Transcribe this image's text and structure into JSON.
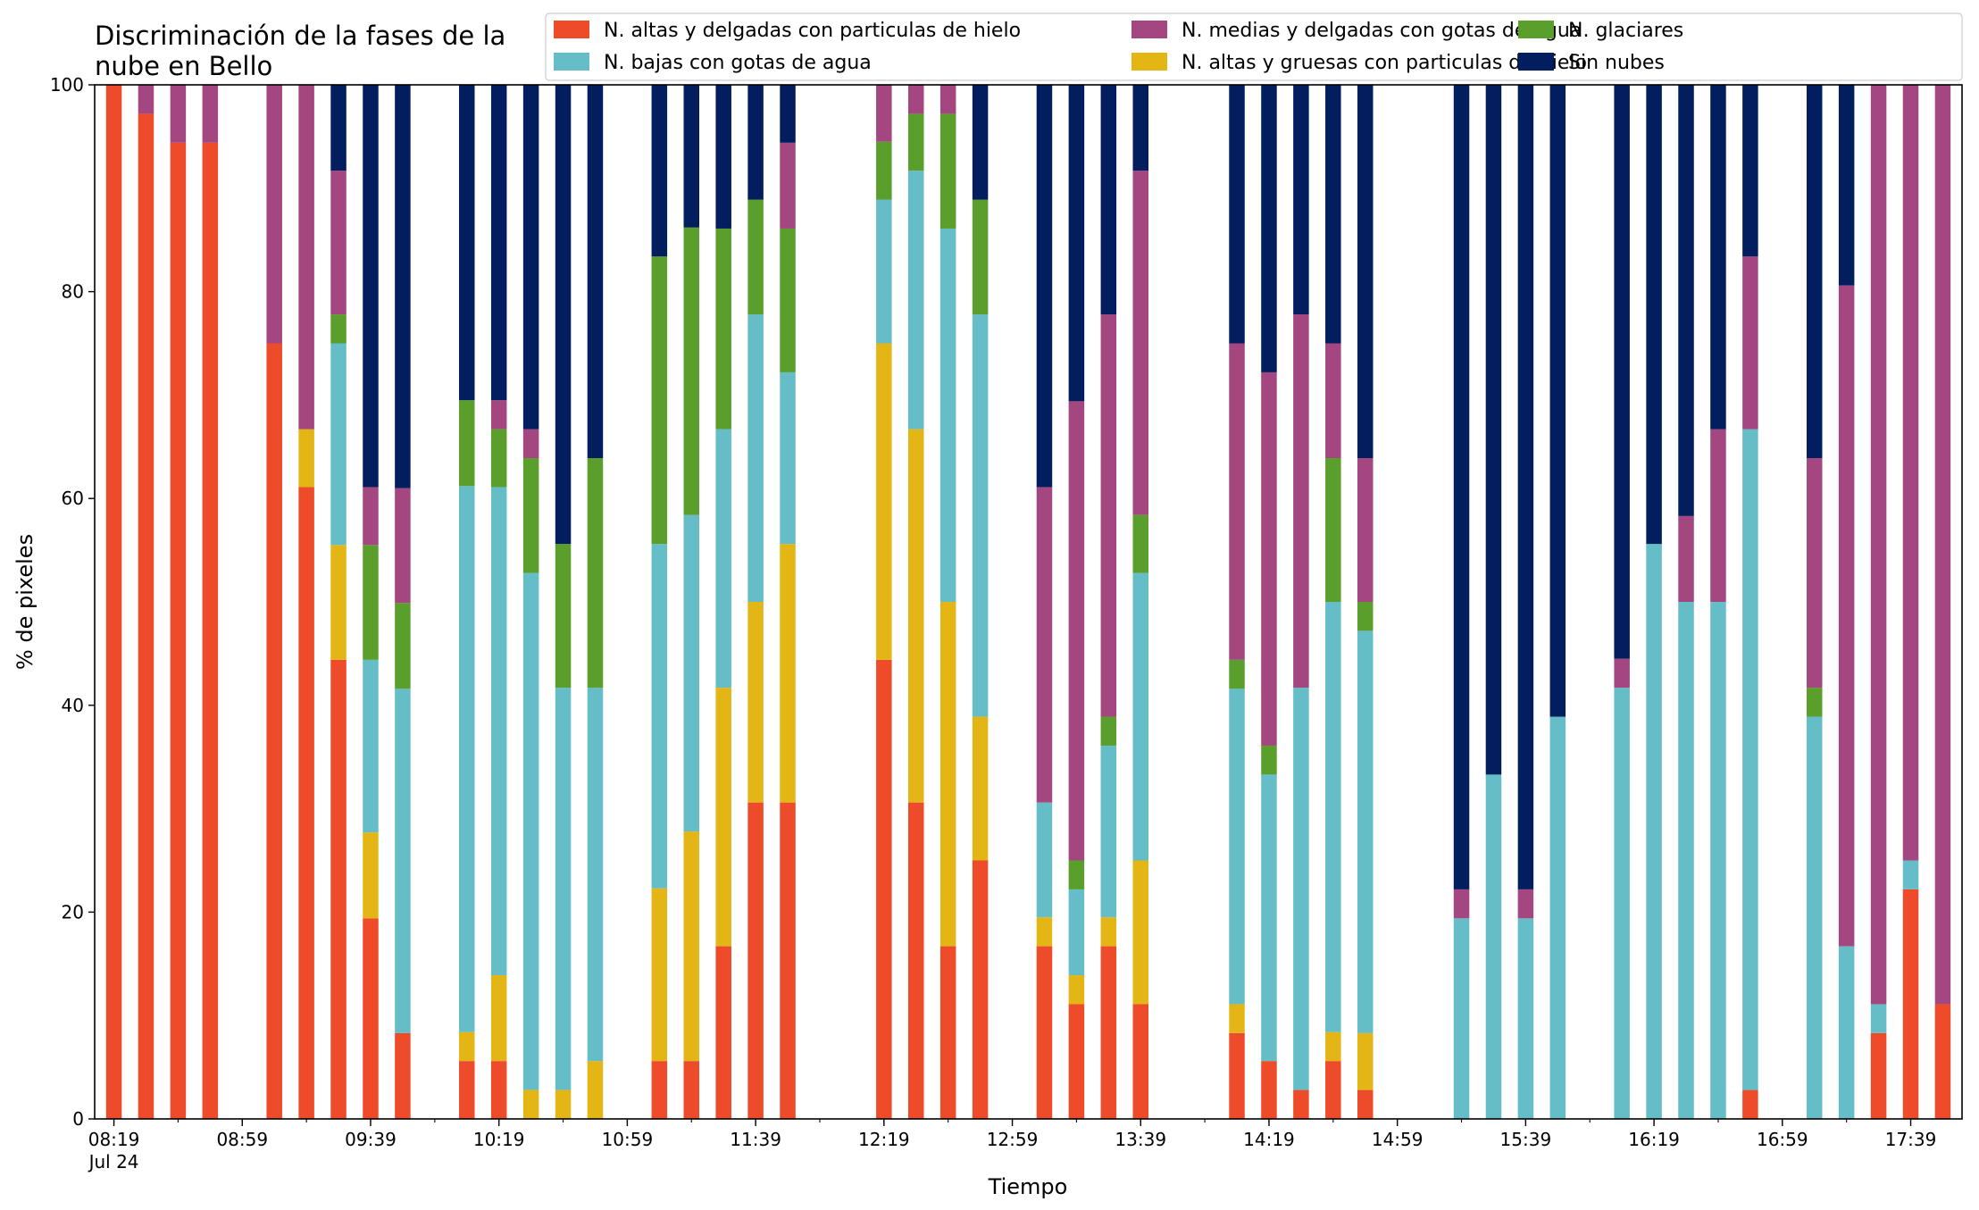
{
  "chart_data": {
    "type": "bar",
    "stacked": true,
    "title_lines": [
      "Discriminación de la fases de la",
      "nube en Bello"
    ],
    "xlabel": "Tiempo",
    "ylabel": "% de pixeles",
    "ylim": [
      0,
      100
    ],
    "yticks": [
      0,
      20,
      40,
      60,
      80,
      100
    ],
    "xlim_minutes_from_0819": [
      -6,
      576
    ],
    "xtick_labels": [
      "08:19",
      "08:59",
      "09:39",
      "10:19",
      "10:59",
      "11:39",
      "12:19",
      "12:59",
      "13:39",
      "14:19",
      "14:59",
      "15:39",
      "16:19",
      "16:59",
      "17:39"
    ],
    "xtick_sublabel": "Jul 24",
    "grid": false,
    "legend_placement": "top-right",
    "series": [
      {
        "name": "N. altas y delgadas con particulas de hielo",
        "color": "#ee4b2b"
      },
      {
        "name": "N. altas y gruesas con particulas de hielo",
        "color": "#e3b515"
      },
      {
        "name": "N. bajas con gotas de agua",
        "color": "#65bdc8"
      },
      {
        "name": "N. glaciares",
        "color": "#5a9e2c"
      },
      {
        "name": "N. medias y delgadas con gotas de agua",
        "color": "#a4467f"
      },
      {
        "name": "Sin nubes",
        "color": "#031e5f"
      }
    ],
    "legend_order": [
      0,
      2,
      4,
      1,
      3,
      5
    ],
    "bars": [
      {
        "time": "08:19",
        "values": [
          100,
          0,
          0,
          0,
          0,
          0
        ]
      },
      {
        "time": "08:29",
        "values": [
          97.2,
          0,
          0,
          0,
          2.8,
          0
        ]
      },
      {
        "time": "08:39",
        "values": [
          94.4,
          0,
          0,
          0,
          5.6,
          0
        ]
      },
      {
        "time": "08:49",
        "values": [
          94.4,
          0,
          0,
          0,
          5.6,
          0
        ]
      },
      {
        "time": "09:09",
        "values": [
          75,
          0,
          0,
          0,
          25,
          0
        ]
      },
      {
        "time": "09:19",
        "values": [
          61.1,
          5.6,
          0,
          0,
          33.3,
          0
        ]
      },
      {
        "time": "09:29",
        "values": [
          44.4,
          11.1,
          19.5,
          2.8,
          13.9,
          8.3
        ]
      },
      {
        "time": "09:39",
        "values": [
          19.4,
          8.3,
          16.7,
          11.1,
          5.6,
          38.9
        ]
      },
      {
        "time": "09:49",
        "values": [
          8.3,
          0,
          33.3,
          8.3,
          11.1,
          39
        ]
      },
      {
        "time": "10:09",
        "values": [
          5.6,
          2.8,
          52.8,
          8.3,
          0,
          30.5
        ]
      },
      {
        "time": "10:19",
        "values": [
          5.6,
          8.3,
          47.2,
          5.6,
          2.8,
          30.5
        ]
      },
      {
        "time": "10:29",
        "values": [
          0,
          2.8,
          50,
          11.1,
          2.8,
          33.3
        ]
      },
      {
        "time": "10:39",
        "values": [
          0,
          2.8,
          38.9,
          13.9,
          0,
          44.4
        ]
      },
      {
        "time": "10:49",
        "values": [
          0,
          5.6,
          36.1,
          22.2,
          0,
          36.1
        ]
      },
      {
        "time": "11:09",
        "values": [
          5.6,
          16.7,
          33.3,
          27.8,
          0,
          16.6
        ]
      },
      {
        "time": "11:19",
        "values": [
          5.6,
          22.2,
          30.6,
          27.8,
          0,
          13.8
        ]
      },
      {
        "time": "11:29",
        "values": [
          16.7,
          25,
          25,
          19.4,
          0,
          13.9
        ]
      },
      {
        "time": "11:39",
        "values": [
          30.6,
          19.4,
          27.8,
          11.1,
          0,
          11.1
        ]
      },
      {
        "time": "11:49",
        "values": [
          30.6,
          25,
          16.6,
          13.9,
          8.3,
          5.6
        ]
      },
      {
        "time": "12:19",
        "values": [
          44.4,
          30.6,
          13.9,
          5.6,
          5.5,
          0
        ]
      },
      {
        "time": "12:29",
        "values": [
          30.6,
          36.1,
          25,
          5.5,
          2.8,
          0
        ]
      },
      {
        "time": "12:39",
        "values": [
          16.7,
          33.3,
          36.1,
          11.1,
          2.8,
          0
        ]
      },
      {
        "time": "12:49",
        "values": [
          25,
          13.9,
          38.9,
          11.1,
          0,
          11.1
        ]
      },
      {
        "time": "13:09",
        "values": [
          16.7,
          2.8,
          11.1,
          0,
          30.5,
          38.9
        ]
      },
      {
        "time": "13:19",
        "values": [
          11.1,
          2.8,
          8.3,
          2.8,
          44.4,
          30.6
        ]
      },
      {
        "time": "13:29",
        "values": [
          16.7,
          2.8,
          16.6,
          2.8,
          38.9,
          22.2
        ]
      },
      {
        "time": "13:39",
        "values": [
          11.1,
          13.9,
          27.8,
          5.6,
          33.3,
          8.3
        ]
      },
      {
        "time": "14:09",
        "values": [
          8.3,
          2.8,
          30.5,
          2.8,
          30.6,
          25
        ]
      },
      {
        "time": "14:19",
        "values": [
          5.6,
          0,
          27.7,
          2.8,
          36.1,
          27.8
        ]
      },
      {
        "time": "14:29",
        "values": [
          2.8,
          0,
          38.9,
          0,
          36.1,
          22.2
        ]
      },
      {
        "time": "14:39",
        "values": [
          5.6,
          2.8,
          41.6,
          13.9,
          11.1,
          25
        ]
      },
      {
        "time": "14:49",
        "values": [
          2.8,
          5.5,
          38.9,
          2.8,
          13.9,
          36.1
        ]
      },
      {
        "time": "15:19",
        "values": [
          0,
          0,
          19.4,
          0,
          2.8,
          77.8
        ]
      },
      {
        "time": "15:29",
        "values": [
          0,
          0,
          33.3,
          0,
          0,
          66.7
        ]
      },
      {
        "time": "15:39",
        "values": [
          0,
          0,
          19.4,
          0,
          2.8,
          77.8
        ]
      },
      {
        "time": "15:49",
        "values": [
          0,
          0,
          38.9,
          0,
          0,
          61.1
        ]
      },
      {
        "time": "16:09",
        "values": [
          0,
          0,
          41.7,
          0,
          2.8,
          55.5
        ]
      },
      {
        "time": "16:19",
        "values": [
          0,
          0,
          55.6,
          0,
          0,
          44.4
        ]
      },
      {
        "time": "16:29",
        "values": [
          0,
          0,
          50,
          0,
          8.3,
          41.7
        ]
      },
      {
        "time": "16:39",
        "values": [
          0,
          0,
          50,
          0,
          16.7,
          33.3
        ]
      },
      {
        "time": "16:49",
        "values": [
          2.8,
          0,
          63.9,
          0,
          16.7,
          16.6
        ]
      },
      {
        "time": "17:09",
        "values": [
          0,
          0,
          38.9,
          2.8,
          22.2,
          36.1
        ]
      },
      {
        "time": "17:19",
        "values": [
          0,
          0,
          16.7,
          0,
          63.9,
          19.4
        ]
      },
      {
        "time": "17:29",
        "values": [
          8.3,
          0,
          2.8,
          0,
          88.9,
          0
        ]
      },
      {
        "time": "17:39",
        "values": [
          22.2,
          0,
          2.8,
          0,
          75,
          0
        ]
      },
      {
        "time": "17:49",
        "values": [
          11.1,
          0,
          0,
          0,
          88.9,
          0
        ]
      }
    ]
  }
}
